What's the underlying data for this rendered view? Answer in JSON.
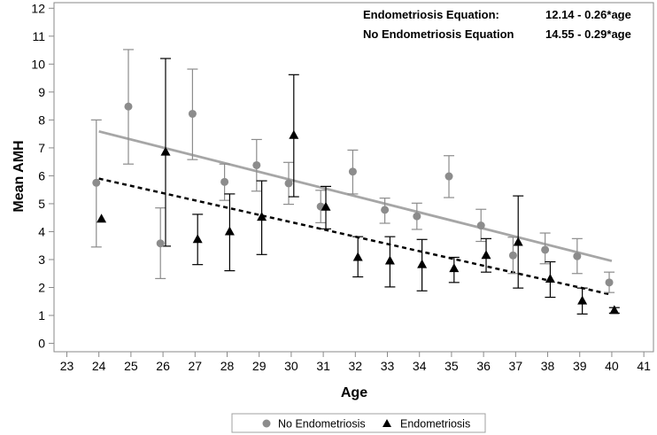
{
  "chart_data": {
    "type": "scatter",
    "title": "",
    "xlabel": "Age",
    "ylabel": "Mean AMH",
    "xlim": [
      22.6,
      41.3
    ],
    "ylim": [
      -0.3,
      12.2
    ],
    "x_ticks": [
      23,
      24,
      25,
      26,
      27,
      28,
      29,
      30,
      31,
      32,
      33,
      34,
      35,
      36,
      37,
      38,
      39,
      40,
      41
    ],
    "y_ticks": [
      0,
      1,
      2,
      3,
      4,
      5,
      6,
      7,
      8,
      9,
      10,
      11,
      12
    ],
    "grid": false,
    "legend_position": "bottom-center",
    "series": [
      {
        "name": "No Endometriosis",
        "marker": "circle",
        "color": "#8c8c8c",
        "points": [
          {
            "x": 23.92,
            "mean": 5.75,
            "low": 3.45,
            "high": 8.0
          },
          {
            "x": 24.92,
            "mean": 8.48,
            "low": 6.42,
            "high": 10.52
          },
          {
            "x": 25.92,
            "mean": 3.58,
            "low": 2.32,
            "high": 4.85
          },
          {
            "x": 26.92,
            "mean": 8.22,
            "low": 6.58,
            "high": 9.82
          },
          {
            "x": 27.92,
            "mean": 5.78,
            "low": 5.12,
            "high": 6.42
          },
          {
            "x": 28.92,
            "mean": 6.38,
            "low": 5.45,
            "high": 7.3
          },
          {
            "x": 29.92,
            "mean": 5.73,
            "low": 4.98,
            "high": 6.48
          },
          {
            "x": 30.92,
            "mean": 4.9,
            "low": 4.32,
            "high": 5.48
          },
          {
            "x": 31.92,
            "mean": 6.15,
            "low": 5.35,
            "high": 6.92
          },
          {
            "x": 32.92,
            "mean": 4.78,
            "low": 4.3,
            "high": 5.2
          },
          {
            "x": 33.92,
            "mean": 4.55,
            "low": 4.08,
            "high": 5.02
          },
          {
            "x": 34.92,
            "mean": 5.98,
            "low": 5.22,
            "high": 6.72
          },
          {
            "x": 35.92,
            "mean": 4.22,
            "low": 3.65,
            "high": 4.8
          },
          {
            "x": 36.92,
            "mean": 3.15,
            "low": 2.5,
            "high": 3.8
          },
          {
            "x": 37.92,
            "mean": 3.35,
            "low": 2.85,
            "high": 3.95
          },
          {
            "x": 38.92,
            "mean": 3.12,
            "low": 2.5,
            "high": 3.75
          },
          {
            "x": 39.92,
            "mean": 2.18,
            "low": 1.82,
            "high": 2.55
          }
        ]
      },
      {
        "name": "Endometriosis",
        "marker": "triangle",
        "color": "#000000",
        "points": [
          {
            "x": 24.08,
            "mean": 4.45,
            "low": null,
            "high": null
          },
          {
            "x": 26.08,
            "mean": 6.85,
            "low": 3.48,
            "high": 10.2
          },
          {
            "x": 27.08,
            "mean": 3.72,
            "low": 2.82,
            "high": 4.62
          },
          {
            "x": 28.08,
            "mean": 4.0,
            "low": 2.6,
            "high": 5.35
          },
          {
            "x": 29.08,
            "mean": 4.52,
            "low": 3.18,
            "high": 5.82
          },
          {
            "x": 30.08,
            "mean": 7.45,
            "low": 5.25,
            "high": 9.62
          },
          {
            "x": 31.08,
            "mean": 4.88,
            "low": 4.1,
            "high": 5.62
          },
          {
            "x": 32.08,
            "mean": 3.08,
            "low": 2.38,
            "high": 3.82
          },
          {
            "x": 33.08,
            "mean": 2.95,
            "low": 2.02,
            "high": 3.82
          },
          {
            "x": 34.08,
            "mean": 2.82,
            "low": 1.88,
            "high": 3.72
          },
          {
            "x": 35.08,
            "mean": 2.68,
            "low": 2.18,
            "high": 3.08
          },
          {
            "x": 36.08,
            "mean": 3.15,
            "low": 2.55,
            "high": 3.75
          },
          {
            "x": 37.08,
            "mean": 3.62,
            "low": 1.98,
            "high": 5.28
          },
          {
            "x": 38.08,
            "mean": 2.3,
            "low": 1.65,
            "high": 2.92
          },
          {
            "x": 39.08,
            "mean": 1.52,
            "low": 1.05,
            "high": 1.98
          },
          {
            "x": 40.08,
            "mean": 1.18,
            "low": 1.08,
            "high": 1.28
          }
        ]
      }
    ],
    "fit_lines": [
      {
        "name": "No Endometriosis",
        "intercept": 14.55,
        "slope": -0.29,
        "x_range": [
          24,
          40
        ],
        "style": "solid",
        "color": "#a6a6a6"
      },
      {
        "name": "Endometriosis",
        "intercept": 12.14,
        "slope": -0.26,
        "x_range": [
          24,
          40
        ],
        "style": "dashed",
        "color": "#000000"
      }
    ],
    "annotations": [
      {
        "label": "Endometriosis Equation:",
        "value": "12.14 - 0.26*age"
      },
      {
        "label": "No Endometriosis Equation",
        "value": "14.55 - 0.29*age"
      }
    ],
    "legend": [
      {
        "label": "No Endometriosis",
        "marker": "circle"
      },
      {
        "label": "Endometriosis",
        "marker": "triangle"
      }
    ]
  }
}
